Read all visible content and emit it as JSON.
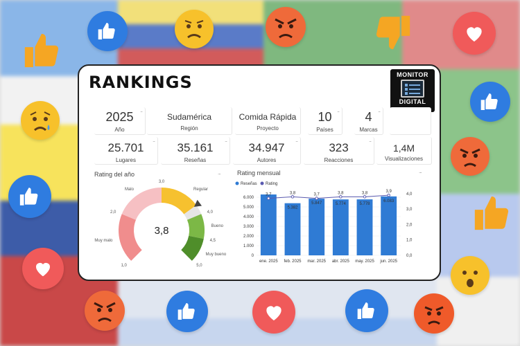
{
  "header": {
    "title": "RANKINGS"
  },
  "logo": {
    "line1": "MONITOR",
    "line2": "DIGITAL"
  },
  "kpis_row1": [
    {
      "value": "2025",
      "label": "Año"
    },
    {
      "value": "",
      "label": "Sudamérica",
      "sub": "Región"
    },
    {
      "value": "",
      "label": "Comida Rápida",
      "sub": "Proyecto"
    },
    {
      "value": "10",
      "label": "Países"
    },
    {
      "value": "4",
      "label": "Marcas"
    }
  ],
  "kpis_row2": [
    {
      "value": "25.701",
      "label": "Lugares"
    },
    {
      "value": "35.161",
      "label": "Reseñas"
    },
    {
      "value": "34.947",
      "label": "Autores"
    },
    {
      "value": "323",
      "label": "Reacciones"
    },
    {
      "value": "1,4M",
      "label": "Visualizaciones"
    }
  ],
  "more_dots": "...",
  "gauge": {
    "title": "Rating del año",
    "value": "3,8",
    "value_num": 3.8,
    "min": 1.0,
    "max": 5.0,
    "tick_labels": [
      "1,0",
      "2,0",
      "3,0",
      "4,0",
      "4,5",
      "5,0"
    ],
    "band_labels": [
      "Muy malo",
      "Malo",
      "Regular",
      "Bueno",
      "Muy bueno"
    ],
    "colors": {
      "muy_malo": "#f08d8d",
      "malo": "#f6c0c3",
      "regular": "#f6c12f",
      "bueno": "#7cb846",
      "muy_bueno": "#4f8e2a",
      "track": "#e5e5e5"
    }
  },
  "chart_data": {
    "type": "bar",
    "title": "Rating mensual",
    "categories": [
      "ene. 2025",
      "feb. 2025",
      "mar. 2025",
      "abr. 2025",
      "may. 2025",
      "jun. 2025"
    ],
    "series": [
      {
        "name": "Reseñas",
        "type": "bar",
        "axis": "left",
        "color": "#2f7bd4",
        "values": [
          6283,
          5382,
          5847,
          5774,
          5778,
          6083
        ],
        "labels": [
          "",
          "5.382",
          "5.847",
          "5.774",
          "5.778",
          "6.083"
        ]
      },
      {
        "name": "Rating",
        "type": "line",
        "axis": "right",
        "color": "#5a5ab0",
        "values": [
          3.7,
          3.8,
          3.7,
          3.8,
          3.8,
          3.9
        ],
        "labels": [
          "3,7",
          "3,8",
          "3,7",
          "3,8",
          "3,8",
          "3,9"
        ]
      }
    ],
    "left_ticks": [
      "0",
      "1.000",
      "2.000",
      "3.000",
      "4.000",
      "5.000",
      "6.000",
      "7.000"
    ],
    "right_ticks": [
      "0,0",
      "1,0",
      "2,0",
      "3,0",
      "4,0"
    ],
    "ylim_left": [
      0,
      7000
    ],
    "ylim_right": [
      0,
      4.4
    ],
    "legend": "top-left",
    "grid": true
  }
}
